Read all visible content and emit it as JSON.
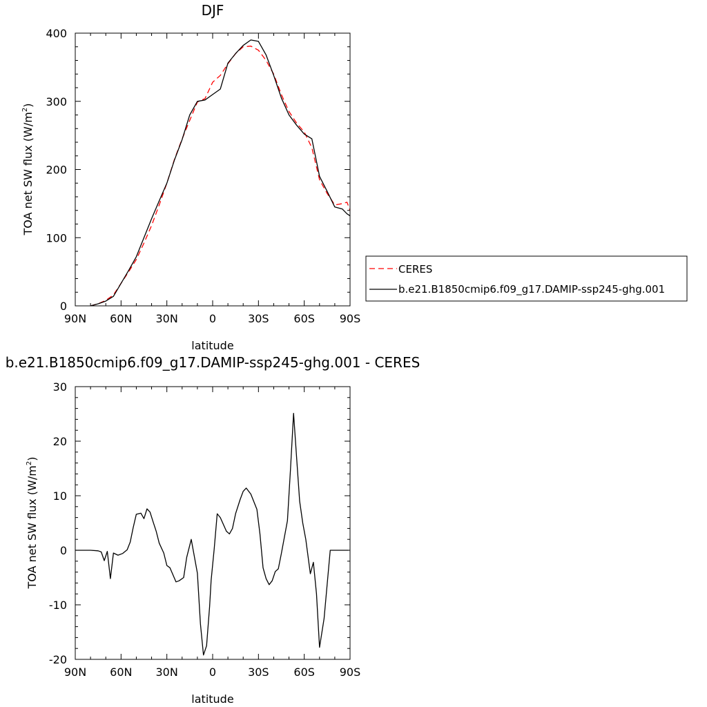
{
  "chart_data": [
    {
      "type": "line",
      "title": "DJF",
      "xlabel": "latitude",
      "ylabel": "TOA net SW flux (W/m",
      "ylabel_sup": "2",
      "ylabel_end": ")",
      "xlim": [
        90,
        -90
      ],
      "ylim": [
        0,
        400
      ],
      "x_ticks": [
        90,
        60,
        30,
        0,
        -30,
        -60,
        -90
      ],
      "x_tick_labels": [
        "90N",
        "60N",
        "30N",
        "0",
        "30S",
        "60S",
        "90S"
      ],
      "y_ticks": [
        0,
        100,
        200,
        300,
        400
      ],
      "y_tick_labels": [
        "0",
        "100",
        "200",
        "300",
        "400"
      ],
      "legend_position": "right",
      "series": [
        {
          "name": "CERES",
          "color": "#ff0000",
          "dash": "8,5",
          "x": [
            80,
            75,
            70,
            65,
            60,
            55,
            50,
            45,
            40,
            35,
            30,
            25,
            20,
            15,
            10,
            5,
            0,
            -5,
            -10,
            -15,
            -20,
            -25,
            -30,
            -35,
            -40,
            -45,
            -50,
            -55,
            -60,
            -65,
            -70,
            -75,
            -80,
            -85,
            -88,
            -90
          ],
          "y": [
            0,
            3,
            8,
            16,
            33,
            50,
            68,
            92,
            118,
            148,
            180,
            215,
            245,
            272,
            299,
            304,
            328,
            338,
            355,
            370,
            380,
            381,
            375,
            360,
            340,
            310,
            285,
            268,
            255,
            232,
            185,
            165,
            148,
            150,
            152,
            140
          ]
        },
        {
          "name": "b.e21.B1850cmip6.f09_g17.DAMIP-ssp245-ghg.001",
          "color": "#000000",
          "dash": "",
          "x": [
            80,
            75,
            70,
            65,
            60,
            55,
            50,
            45,
            40,
            35,
            30,
            25,
            20,
            15,
            10,
            5,
            0,
            -5,
            -10,
            -15,
            -20,
            -25,
            -30,
            -35,
            -40,
            -45,
            -50,
            -55,
            -60,
            -65,
            -70,
            -75,
            -80,
            -85,
            -88,
            -90
          ],
          "y": [
            0,
            3,
            7,
            14,
            33,
            52,
            72,
            100,
            128,
            154,
            180,
            214,
            244,
            280,
            300,
            302,
            310,
            318,
            356,
            370,
            382,
            390,
            388,
            368,
            338,
            305,
            280,
            265,
            252,
            245,
            190,
            168,
            145,
            142,
            135,
            132
          ]
        }
      ]
    },
    {
      "type": "line",
      "title": "b.e21.B1850cmip6.f09_g17.DAMIP-ssp245-ghg.001 - CERES",
      "xlabel": "latitude",
      "ylabel": "TOA net SW flux (W/m",
      "ylabel_sup": "2",
      "ylabel_end": ")",
      "xlim": [
        90,
        -90
      ],
      "ylim": [
        -20,
        30
      ],
      "x_ticks": [
        90,
        60,
        30,
        0,
        -30,
        -60,
        -90
      ],
      "x_tick_labels": [
        "90N",
        "60N",
        "30N",
        "0",
        "30S",
        "60S",
        "90S"
      ],
      "y_ticks": [
        -20,
        -10,
        0,
        10,
        20,
        30
      ],
      "y_tick_labels": [
        "-20",
        "-10",
        "0",
        "10",
        "20",
        "30"
      ],
      "series": [
        {
          "color": "#000000",
          "x": [
            90,
            80,
            75,
            73,
            71,
            69,
            67,
            65,
            62,
            59,
            56,
            54,
            52,
            50,
            47,
            45,
            43,
            41,
            39,
            37,
            35,
            32,
            30,
            28,
            26,
            24,
            22,
            19,
            17,
            14,
            10,
            8,
            6,
            4,
            2,
            1,
            -1,
            -3,
            -5,
            -9,
            -11,
            -13,
            -15,
            -18,
            -20,
            -22,
            -25,
            -29,
            -31,
            -33,
            -35,
            -37,
            -39,
            -41,
            -43,
            -45,
            -49,
            -51,
            -53,
            -55,
            -57,
            -59,
            -61,
            -64,
            -66,
            -68,
            -70,
            -73,
            -77,
            -79,
            -81,
            -83,
            -85,
            -87,
            -89
          ],
          "y": [
            0,
            0,
            -0.1,
            -0.3,
            -1.9,
            -0.2,
            -5.2,
            -0.5,
            -0.9,
            -0.6,
            0.1,
            1.5,
            4.2,
            6.6,
            6.8,
            5.8,
            7.6,
            7.0,
            5.2,
            3.5,
            1.3,
            -0.5,
            -2.8,
            -3.2,
            -4.5,
            -5.8,
            -5.6,
            -5.0,
            -1.3,
            2.0,
            -4.2,
            -13.5,
            -19.2,
            -17.5,
            -10.3,
            -5.5,
            0.2,
            6.7,
            6.0,
            3.5,
            3.0,
            4.0,
            6.7,
            9.3,
            10.8,
            11.4,
            10.3,
            7.5,
            3.0,
            -3.2,
            -5.2,
            -6.3,
            -5.6,
            -3.9,
            -3.4,
            -0.6,
            5.4,
            15.0,
            25.1,
            17.0,
            9.0,
            5.0,
            2.0,
            -4.3,
            -2.2,
            -8.0,
            -17.8,
            -12.5,
            0,
            0,
            0,
            0,
            0,
            0,
            0
          ]
        }
      ]
    }
  ]
}
